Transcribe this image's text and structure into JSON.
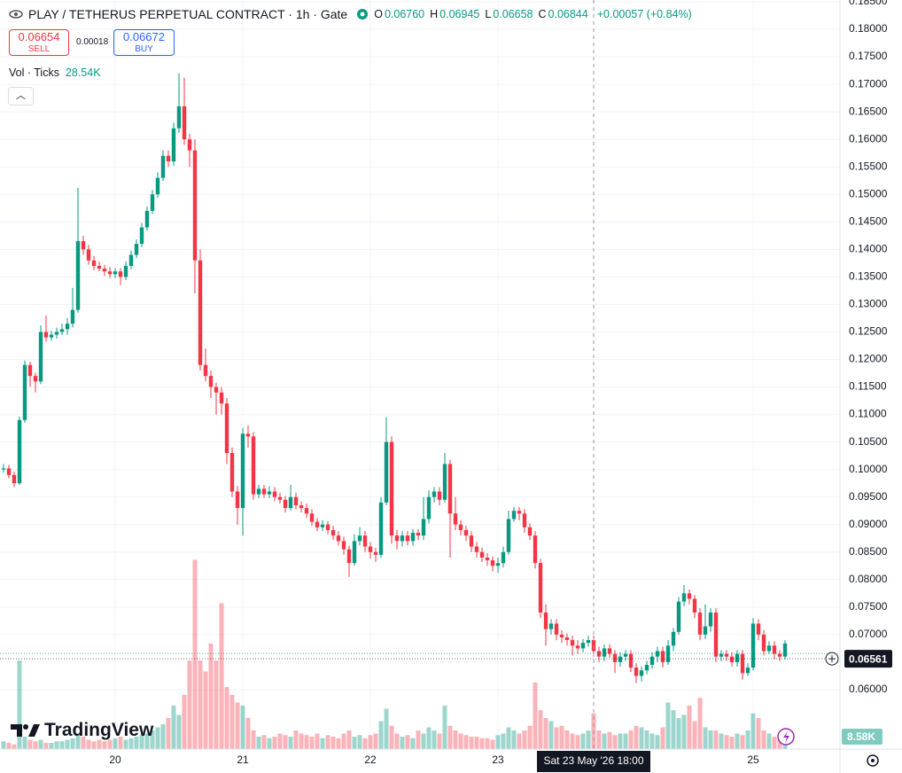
{
  "header": {
    "symbol": "PLAY / TETHERUS PERPETUAL CONTRACT · 1h · Gate",
    "ohlc": [
      {
        "k": "O",
        "v": "0.06760"
      },
      {
        "k": "H",
        "v": "0.06945"
      },
      {
        "k": "L",
        "v": "0.06658"
      },
      {
        "k": "C",
        "v": "0.06844"
      }
    ],
    "change": "+0.00057 (+0.84%)",
    "sell": {
      "price": "0.06654",
      "label": "SELL"
    },
    "spread": "0.00018",
    "buy": {
      "price": "0.06672",
      "label": "BUY"
    },
    "volume_indicator": {
      "name": "Vol · Ticks",
      "value": "28.54K"
    },
    "logo": "TradingView",
    "volume_badge": "8.58K"
  },
  "chart_data": {
    "type": "candlestick",
    "up_color": "#089981",
    "down_color": "#f23645",
    "ylim": [
      0.0492,
      0.18532
    ],
    "volume_ylim": [
      0,
      200
    ],
    "grid": true,
    "yticks": [
      {
        "value": 0.06,
        "label": "0.06000"
      },
      {
        "value": 0.065,
        "label": "0.06500"
      },
      {
        "value": 0.07,
        "label": "0.07000"
      },
      {
        "value": 0.075,
        "label": "0.07500"
      },
      {
        "value": 0.08,
        "label": "0.08000"
      },
      {
        "value": 0.085,
        "label": "0.08500"
      },
      {
        "value": 0.09,
        "label": "0.09000"
      },
      {
        "value": 0.095,
        "label": "0.09500"
      },
      {
        "value": 0.1,
        "label": "0.10000"
      },
      {
        "value": 0.105,
        "label": "0.10500"
      },
      {
        "value": 0.11,
        "label": "0.11000"
      },
      {
        "value": 0.115,
        "label": "0.11500"
      },
      {
        "value": 0.12,
        "label": "0.12000"
      },
      {
        "value": 0.125,
        "label": "0.12500"
      },
      {
        "value": 0.13,
        "label": "0.13000"
      },
      {
        "value": 0.135,
        "label": "0.13500"
      },
      {
        "value": 0.14,
        "label": "0.14000"
      },
      {
        "value": 0.145,
        "label": "0.14500"
      },
      {
        "value": 0.15,
        "label": "0.15000"
      },
      {
        "value": 0.155,
        "label": "0.15500"
      },
      {
        "value": 0.16,
        "label": "0.16000"
      },
      {
        "value": 0.165,
        "label": "0.16500"
      },
      {
        "value": 0.17,
        "label": "0.17000"
      },
      {
        "value": 0.175,
        "label": "0.17500"
      },
      {
        "value": 0.18,
        "label": "0.18000"
      },
      {
        "value": 0.185,
        "label": "0.18500"
      }
    ],
    "last_price": 0.06561,
    "crosshair_index": 111,
    "crosshair_label": "Sat 23 May '26 18:00",
    "categories": [
      null,
      null,
      null,
      null,
      null,
      null,
      null,
      null,
      null,
      null,
      null,
      null,
      null,
      null,
      null,
      null,
      null,
      null,
      null,
      null,
      null,
      "20",
      null,
      null,
      null,
      null,
      null,
      null,
      null,
      null,
      null,
      null,
      null,
      null,
      null,
      null,
      null,
      null,
      null,
      null,
      null,
      null,
      null,
      null,
      null,
      "21",
      null,
      null,
      null,
      null,
      null,
      null,
      null,
      null,
      null,
      null,
      null,
      null,
      null,
      null,
      null,
      null,
      null,
      null,
      null,
      null,
      null,
      null,
      null,
      "22",
      null,
      null,
      null,
      null,
      null,
      null,
      null,
      null,
      null,
      null,
      null,
      null,
      null,
      null,
      null,
      null,
      null,
      null,
      null,
      null,
      null,
      null,
      null,
      "23",
      null,
      null,
      null,
      null,
      null,
      null,
      null,
      null,
      null,
      null,
      null,
      null,
      null,
      null,
      null,
      null,
      null,
      null,
      null,
      null,
      null,
      null,
      null,
      null,
      null,
      null,
      null,
      null,
      null,
      null,
      null,
      null,
      null,
      null,
      null,
      null,
      null,
      null,
      null,
      null,
      null,
      null,
      null,
      null,
      null,
      null,
      null,
      "25",
      null,
      null,
      null,
      null,
      null,
      null
    ],
    "ohlc": [
      [
        0.1,
        0.101,
        0.0994,
        0.1002
      ],
      [
        0.1002,
        0.1008,
        0.0984,
        0.099
      ],
      [
        0.099,
        0.0996,
        0.0968,
        0.0975
      ],
      [
        0.0975,
        0.1096,
        0.0972,
        0.109
      ],
      [
        0.109,
        0.1198,
        0.1085,
        0.119
      ],
      [
        0.119,
        0.1196,
        0.115,
        0.117
      ],
      [
        0.117,
        0.1176,
        0.114,
        0.116
      ],
      [
        0.116,
        0.1262,
        0.1155,
        0.125
      ],
      [
        0.125,
        0.128,
        0.1232,
        0.124
      ],
      [
        0.124,
        0.1252,
        0.1234,
        0.1245
      ],
      [
        0.1245,
        0.1258,
        0.1238,
        0.125
      ],
      [
        0.125,
        0.1265,
        0.1244,
        0.1255
      ],
      [
        0.1255,
        0.1275,
        0.1245,
        0.1265
      ],
      [
        0.1265,
        0.133,
        0.1258,
        0.129
      ],
      [
        0.129,
        0.1512,
        0.1285,
        0.1415
      ],
      [
        0.1415,
        0.1425,
        0.139,
        0.14
      ],
      [
        0.14,
        0.1408,
        0.1372,
        0.138
      ],
      [
        0.138,
        0.1388,
        0.1362,
        0.137
      ],
      [
        0.137,
        0.1378,
        0.136,
        0.1365
      ],
      [
        0.1365,
        0.1372,
        0.1352,
        0.136
      ],
      [
        0.136,
        0.1368,
        0.1348,
        0.1355
      ],
      [
        0.1355,
        0.1366,
        0.1348,
        0.136
      ],
      [
        0.136,
        0.1366,
        0.1335,
        0.135
      ],
      [
        0.135,
        0.1378,
        0.1344,
        0.137
      ],
      [
        0.137,
        0.1398,
        0.1364,
        0.139
      ],
      [
        0.139,
        0.1418,
        0.1384,
        0.141
      ],
      [
        0.141,
        0.1448,
        0.1404,
        0.144
      ],
      [
        0.144,
        0.1478,
        0.1434,
        0.147
      ],
      [
        0.147,
        0.1508,
        0.1464,
        0.15
      ],
      [
        0.15,
        0.154,
        0.1494,
        0.153
      ],
      [
        0.153,
        0.158,
        0.1524,
        0.157
      ],
      [
        0.157,
        0.158,
        0.155,
        0.156
      ],
      [
        0.156,
        0.163,
        0.1552,
        0.162
      ],
      [
        0.162,
        0.172,
        0.1612,
        0.166
      ],
      [
        0.166,
        0.1712,
        0.159,
        0.16
      ],
      [
        0.16,
        0.161,
        0.155,
        0.158
      ],
      [
        0.158,
        0.16,
        0.132,
        0.138
      ],
      [
        0.138,
        0.14,
        0.118,
        0.119
      ],
      [
        0.119,
        0.122,
        0.116,
        0.117
      ],
      [
        0.117,
        0.118,
        0.113,
        0.115
      ],
      [
        0.115,
        0.1158,
        0.11,
        0.114
      ],
      [
        0.114,
        0.115,
        0.11,
        0.112
      ],
      [
        0.112,
        0.113,
        0.101,
        0.103
      ],
      [
        0.103,
        0.104,
        0.095,
        0.096
      ],
      [
        0.096,
        0.097,
        0.09,
        0.093
      ],
      [
        0.093,
        0.1075,
        0.088,
        0.1065
      ],
      [
        0.1065,
        0.108,
        0.104,
        0.106
      ],
      [
        0.106,
        0.1068,
        0.0945,
        0.0955
      ],
      [
        0.0955,
        0.0972,
        0.0948,
        0.0965
      ],
      [
        0.0965,
        0.0972,
        0.0948,
        0.0955
      ],
      [
        0.0955,
        0.097,
        0.0948,
        0.096
      ],
      [
        0.096,
        0.0968,
        0.0942,
        0.095
      ],
      [
        0.095,
        0.0958,
        0.0938,
        0.0945
      ],
      [
        0.0945,
        0.0952,
        0.0922,
        0.093
      ],
      [
        0.093,
        0.0972,
        0.0925,
        0.095
      ],
      [
        0.095,
        0.0958,
        0.0928,
        0.0935
      ],
      [
        0.0935,
        0.0942,
        0.0922,
        0.093
      ],
      [
        0.093,
        0.0938,
        0.0912,
        0.092
      ],
      [
        0.092,
        0.0928,
        0.0898,
        0.0905
      ],
      [
        0.0905,
        0.0912,
        0.0888,
        0.0895
      ],
      [
        0.0895,
        0.0908,
        0.0888,
        0.09
      ],
      [
        0.09,
        0.0906,
        0.0882,
        0.089
      ],
      [
        0.089,
        0.0898,
        0.0872,
        0.088
      ],
      [
        0.088,
        0.0888,
        0.0862,
        0.087
      ],
      [
        0.087,
        0.0878,
        0.0845,
        0.0855
      ],
      [
        0.0855,
        0.0862,
        0.0805,
        0.083
      ],
      [
        0.083,
        0.0882,
        0.0825,
        0.087
      ],
      [
        0.087,
        0.0895,
        0.0862,
        0.088
      ],
      [
        0.088,
        0.0888,
        0.085,
        0.086
      ],
      [
        0.086,
        0.0868,
        0.0838,
        0.085
      ],
      [
        0.085,
        0.0858,
        0.0832,
        0.0845
      ],
      [
        0.0845,
        0.095,
        0.084,
        0.094
      ],
      [
        0.094,
        0.1095,
        0.0935,
        0.105
      ],
      [
        0.105,
        0.106,
        0.0865,
        0.088
      ],
      [
        0.088,
        0.089,
        0.0855,
        0.087
      ],
      [
        0.087,
        0.0888,
        0.086,
        0.088
      ],
      [
        0.088,
        0.0888,
        0.0862,
        0.087
      ],
      [
        0.087,
        0.0892,
        0.0862,
        0.0885
      ],
      [
        0.0885,
        0.0892,
        0.0872,
        0.088
      ],
      [
        0.088,
        0.095,
        0.0872,
        0.091
      ],
      [
        0.091,
        0.0962,
        0.0902,
        0.095
      ],
      [
        0.095,
        0.0968,
        0.094,
        0.096
      ],
      [
        0.096,
        0.0968,
        0.0935,
        0.0945
      ],
      [
        0.0945,
        0.103,
        0.094,
        0.101
      ],
      [
        0.101,
        0.1018,
        0.084,
        0.092
      ],
      [
        0.092,
        0.095,
        0.089,
        0.09
      ],
      [
        0.09,
        0.0908,
        0.088,
        0.089
      ],
      [
        0.089,
        0.0898,
        0.087,
        0.088
      ],
      [
        0.088,
        0.0888,
        0.085,
        0.086
      ],
      [
        0.086,
        0.0868,
        0.084,
        0.085
      ],
      [
        0.085,
        0.0858,
        0.0832,
        0.084
      ],
      [
        0.084,
        0.0848,
        0.0825,
        0.0835
      ],
      [
        0.0835,
        0.0842,
        0.0815,
        0.0825
      ],
      [
        0.0825,
        0.084,
        0.0812,
        0.083
      ],
      [
        0.083,
        0.086,
        0.0822,
        0.085
      ],
      [
        0.085,
        0.0925,
        0.0845,
        0.091
      ],
      [
        0.091,
        0.0932,
        0.0905,
        0.0925
      ],
      [
        0.0925,
        0.0932,
        0.0908,
        0.092
      ],
      [
        0.092,
        0.0928,
        0.0885,
        0.0895
      ],
      [
        0.0895,
        0.0902,
        0.0872,
        0.088
      ],
      [
        0.088,
        0.0888,
        0.082,
        0.083
      ],
      [
        0.083,
        0.0838,
        0.073,
        0.074
      ],
      [
        0.074,
        0.0755,
        0.068,
        0.071
      ],
      [
        0.071,
        0.0728,
        0.07,
        0.072
      ],
      [
        0.072,
        0.0728,
        0.069,
        0.07
      ],
      [
        0.07,
        0.0708,
        0.0685,
        0.0695
      ],
      [
        0.0695,
        0.0702,
        0.068,
        0.069
      ],
      [
        0.069,
        0.0698,
        0.0662,
        0.068
      ],
      [
        0.068,
        0.069,
        0.0665,
        0.0675
      ],
      [
        0.0675,
        0.0692,
        0.0668,
        0.0685
      ],
      [
        0.0685,
        0.0698,
        0.0678,
        0.069
      ],
      [
        0.069,
        0.0698,
        0.066,
        0.067
      ],
      [
        0.067,
        0.0678,
        0.065,
        0.066
      ],
      [
        0.066,
        0.0682,
        0.0652,
        0.0675
      ],
      [
        0.0675,
        0.0682,
        0.0658,
        0.0665
      ],
      [
        0.0665,
        0.0672,
        0.063,
        0.065
      ],
      [
        0.065,
        0.0668,
        0.0642,
        0.066
      ],
      [
        0.066,
        0.0672,
        0.0652,
        0.0665
      ],
      [
        0.0665,
        0.0672,
        0.0632,
        0.064
      ],
      [
        0.064,
        0.0648,
        0.0612,
        0.0625
      ],
      [
        0.0625,
        0.0642,
        0.0615,
        0.0635
      ],
      [
        0.0635,
        0.0652,
        0.0628,
        0.0645
      ],
      [
        0.0645,
        0.0668,
        0.0638,
        0.066
      ],
      [
        0.066,
        0.0678,
        0.065,
        0.067
      ],
      [
        0.067,
        0.0678,
        0.064,
        0.065
      ],
      [
        0.065,
        0.069,
        0.0645,
        0.068
      ],
      [
        0.068,
        0.0712,
        0.067,
        0.0705
      ],
      [
        0.0705,
        0.0768,
        0.07,
        0.076
      ],
      [
        0.076,
        0.079,
        0.0752,
        0.0775
      ],
      [
        0.0775,
        0.0782,
        0.0755,
        0.0765
      ],
      [
        0.0765,
        0.0772,
        0.073,
        0.074
      ],
      [
        0.074,
        0.0748,
        0.069,
        0.07
      ],
      [
        0.07,
        0.0755,
        0.0692,
        0.0715
      ],
      [
        0.0715,
        0.0748,
        0.0705,
        0.074
      ],
      [
        0.074,
        0.0748,
        0.065,
        0.066
      ],
      [
        0.066,
        0.0672,
        0.0652,
        0.0665
      ],
      [
        0.0665,
        0.0672,
        0.0652,
        0.066
      ],
      [
        0.066,
        0.0668,
        0.0642,
        0.065
      ],
      [
        0.065,
        0.0672,
        0.0642,
        0.0665
      ],
      [
        0.0665,
        0.0672,
        0.0618,
        0.063
      ],
      [
        0.063,
        0.0648,
        0.0625,
        0.064
      ],
      [
        0.064,
        0.073,
        0.0635,
        0.072
      ],
      [
        0.072,
        0.0728,
        0.069,
        0.07
      ],
      [
        0.07,
        0.0708,
        0.0662,
        0.067
      ],
      [
        0.067,
        0.0688,
        0.0665,
        0.068
      ],
      [
        0.068,
        0.0688,
        0.0655,
        0.0665
      ],
      [
        0.0665,
        0.0672,
        0.0652,
        0.066
      ],
      [
        0.066,
        0.069,
        0.0655,
        0.0684
      ]
    ],
    "volume": [
      5,
      4,
      3,
      57,
      8,
      6,
      5,
      6,
      4,
      4,
      5,
      5,
      6,
      7,
      10,
      8,
      6,
      5,
      6,
      5,
      6,
      7,
      8,
      6,
      7,
      8,
      9,
      10,
      12,
      14,
      16,
      20,
      28,
      22,
      35,
      57,
      122,
      57,
      50,
      68,
      57,
      94,
      40,
      35,
      30,
      28,
      20,
      12,
      8,
      9,
      7,
      8,
      10,
      9,
      8,
      12,
      10,
      9,
      8,
      10,
      7,
      9,
      8,
      7,
      10,
      12,
      8,
      9,
      7,
      9,
      10,
      18,
      26,
      15,
      10,
      8,
      9,
      7,
      12,
      10,
      14,
      12,
      10,
      28,
      15,
      12,
      10,
      9,
      8,
      8,
      7,
      7,
      6,
      9,
      10,
      14,
      12,
      10,
      12,
      15,
      43,
      25,
      20,
      18,
      14,
      15,
      12,
      10,
      9,
      10,
      12,
      23,
      12,
      10,
      11,
      9,
      10,
      10,
      12,
      15,
      14,
      12,
      10,
      9,
      14,
      30,
      25,
      20,
      22,
      28,
      18,
      33,
      14,
      12,
      12,
      10,
      9,
      8,
      10,
      9,
      12,
      23,
      20,
      12,
      10,
      8,
      9,
      8.58
    ]
  }
}
